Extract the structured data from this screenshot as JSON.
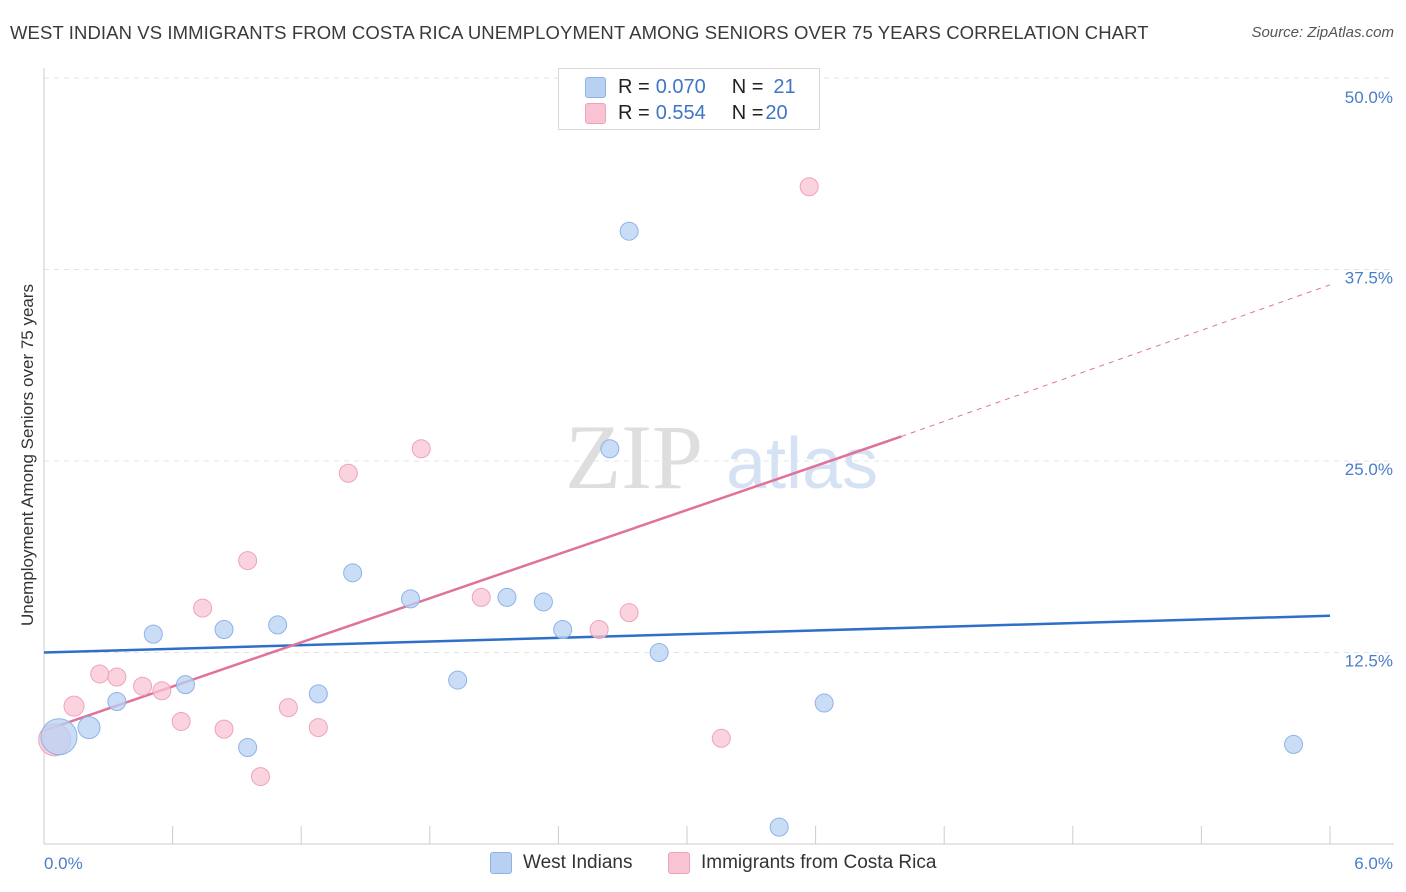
{
  "title": "WEST INDIAN VS IMMIGRANTS FROM COSTA RICA UNEMPLOYMENT AMONG SENIORS OVER 75 YEARS CORRELATION CHART",
  "source": "Source: ZipAtlas.com",
  "watermark": {
    "zip": "ZIP",
    "atlas": "atlas"
  },
  "legend": {
    "west": {
      "r_label": "R = ",
      "r_value": "0.070",
      "n_label": "N = ",
      "n_value": "21"
    },
    "costa": {
      "r_label": "R = ",
      "r_value": "0.554",
      "n_label": "N = ",
      "n_value": "20"
    }
  },
  "colors": {
    "west_fill": "#b8d1f3",
    "west_stroke": "#8fb3e6",
    "west_line": "#2f6fc9",
    "costa_fill": "#f8c4d3",
    "costa_stroke": "#efa3ba",
    "costa_line": "#e0729a",
    "axis_text": "#4a7ec8",
    "grid": "#e3e3e3"
  },
  "chart_data": {
    "type": "scatter",
    "title": "WEST INDIAN VS IMMIGRANTS FROM COSTA RICA UNEMPLOYMENT AMONG SENIORS OVER 75 YEARS CORRELATION CHART",
    "xlabel": "",
    "ylabel": "Unemployment Among Seniors over 75 years",
    "xlim": [
      0,
      6
    ],
    "ylim": [
      0,
      50
    ],
    "x_tick_labels": [
      "0.0%",
      "6.0%"
    ],
    "y_ticks": [
      12.5,
      25.0,
      37.5,
      50.0
    ],
    "y_tick_labels": [
      "12.5%",
      "25.0%",
      "37.5%",
      "50.0%"
    ],
    "series": [
      {
        "name": "West Indians",
        "r": 0.07,
        "n": 21,
        "points": [
          [
            0.07,
            7.0,
            18
          ],
          [
            0.21,
            7.6,
            11
          ],
          [
            0.34,
            9.3,
            9
          ],
          [
            0.51,
            13.7,
            9
          ],
          [
            0.66,
            10.4,
            9
          ],
          [
            0.84,
            14.0,
            9
          ],
          [
            0.95,
            6.3,
            9
          ],
          [
            1.09,
            14.3,
            9
          ],
          [
            1.28,
            9.8,
            9
          ],
          [
            1.44,
            17.7,
            9
          ],
          [
            1.71,
            16.0,
            9
          ],
          [
            1.93,
            10.7,
            9
          ],
          [
            2.16,
            16.1,
            9
          ],
          [
            2.33,
            15.8,
            9
          ],
          [
            2.42,
            14.0,
            9
          ],
          [
            2.64,
            25.8,
            9
          ],
          [
            2.73,
            40.0,
            9
          ],
          [
            2.87,
            12.5,
            9
          ],
          [
            3.43,
            1.1,
            9
          ],
          [
            3.64,
            9.2,
            9
          ],
          [
            5.83,
            6.5,
            9
          ]
        ],
        "trend": {
          "x": [
            0.0,
            6.0
          ],
          "y": [
            12.5,
            14.9
          ]
        }
      },
      {
        "name": "Immigrants from Costa Rica",
        "r": 0.554,
        "n": 20,
        "points": [
          [
            0.05,
            6.8,
            16
          ],
          [
            0.14,
            9.0,
            10
          ],
          [
            0.26,
            11.1,
            9
          ],
          [
            0.34,
            10.9,
            9
          ],
          [
            0.46,
            10.3,
            9
          ],
          [
            0.55,
            10.0,
            9
          ],
          [
            0.64,
            8.0,
            9
          ],
          [
            0.74,
            15.4,
            9
          ],
          [
            0.84,
            7.5,
            9
          ],
          [
            0.95,
            18.5,
            9
          ],
          [
            1.01,
            4.4,
            9
          ],
          [
            1.14,
            8.9,
            9
          ],
          [
            1.28,
            7.6,
            9
          ],
          [
            1.42,
            24.2,
            9
          ],
          [
            1.76,
            25.8,
            9
          ],
          [
            2.04,
            16.1,
            9
          ],
          [
            2.59,
            14.0,
            9
          ],
          [
            2.73,
            15.1,
            9
          ],
          [
            3.16,
            6.9,
            9
          ],
          [
            3.57,
            42.9,
            9
          ]
        ],
        "trend": {
          "x": [
            0.0,
            4.0
          ],
          "y": [
            7.4,
            26.6
          ]
        },
        "trend_extension": {
          "x": [
            4.0,
            6.0
          ],
          "y": [
            26.6,
            36.5
          ]
        }
      }
    ]
  },
  "labels": {
    "ylabel": "Unemployment Among Seniors over 75 years",
    "x_left": "0.0%",
    "x_right": "6.0%",
    "legend_west": "West Indians",
    "legend_costa": "Immigrants from Costa Rica"
  }
}
